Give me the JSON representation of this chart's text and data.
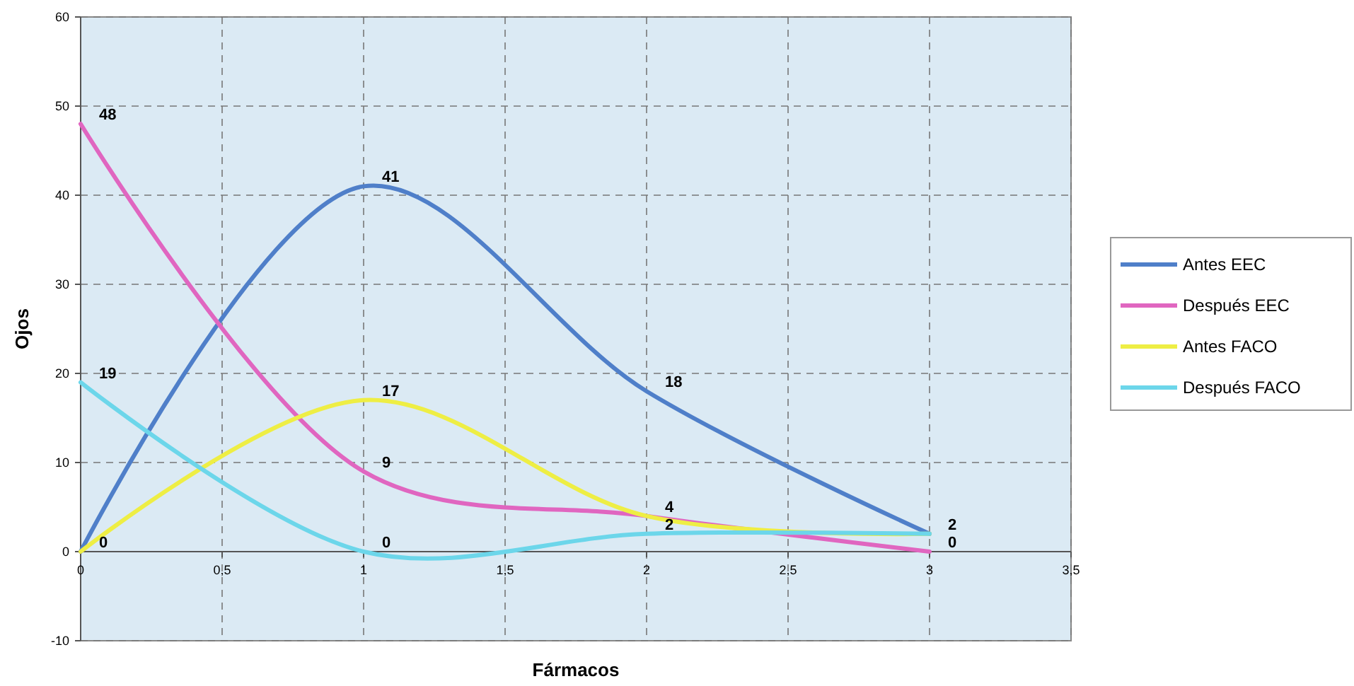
{
  "chart_data": {
    "type": "line",
    "xlabel": "Fármacos",
    "ylabel": "Ojos",
    "x": [
      0,
      1,
      2,
      3
    ],
    "series": [
      {
        "name": "Antes EEC",
        "color": "#4f7fc9",
        "values": [
          0,
          41,
          18,
          2
        ],
        "value_labels": [
          "0",
          "41",
          "18",
          "2"
        ]
      },
      {
        "name": "Después EEC",
        "color": "#e066c0",
        "values": [
          48,
          9,
          4,
          0
        ],
        "value_labels": [
          "48",
          "9",
          "4",
          "0"
        ]
      },
      {
        "name": "Antes FACO",
        "color": "#eeee44",
        "values": [
          0,
          17,
          4,
          2
        ],
        "value_labels": [
          null,
          "17",
          null,
          null
        ]
      },
      {
        "name": "Después FACO",
        "color": "#6cd6ea",
        "values": [
          19,
          0,
          2,
          2
        ],
        "value_labels": [
          "19",
          "0",
          "2",
          null
        ]
      }
    ],
    "xlim": [
      0,
      3.5
    ],
    "xticks": [
      0,
      {
        "value": 0.5,
        "label": "0,5"
      },
      1,
      {
        "value": 1.5,
        "label": "1,5"
      },
      2,
      {
        "value": 2.5,
        "label": "2,5"
      },
      3,
      {
        "value": 3.5,
        "label": "3,5"
      }
    ],
    "ylim": [
      -10,
      60
    ],
    "yticks": [
      -10,
      0,
      10,
      20,
      30,
      40,
      50,
      60
    ],
    "grid": true,
    "legend": "right",
    "marker": "none",
    "line_style": "solid"
  }
}
